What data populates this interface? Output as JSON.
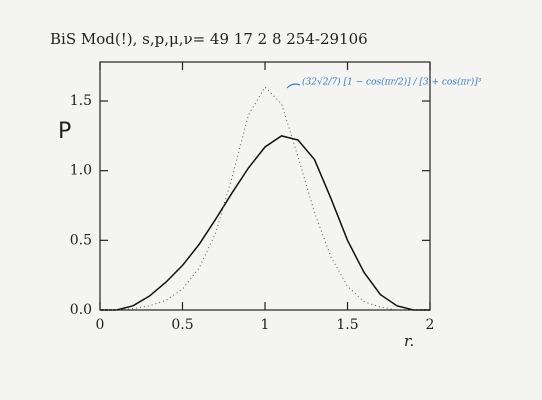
{
  "chart_data": {
    "type": "line",
    "title": "BiS Mod(!), s,p,μ,ν= 49 17 2 8 254-29106",
    "y_label": "P",
    "x_label": "r.",
    "annotation": "(32√2/7) [1 − cos(πr/2)] / [3 + cos(πr)]³",
    "x": [
      0,
      0.1,
      0.2,
      0.3,
      0.4,
      0.5,
      0.6,
      0.7,
      0.8,
      0.9,
      1.0,
      1.1,
      1.2,
      1.3,
      1.4,
      1.5,
      1.6,
      1.7,
      1.8,
      1.9,
      2.0
    ],
    "series": [
      {
        "color": "#111111",
        "style": "solid",
        "values": [
          0,
          0,
          0.03,
          0.1,
          0.2,
          0.32,
          0.47,
          0.65,
          0.84,
          1.02,
          1.17,
          1.25,
          1.22,
          1.08,
          0.8,
          0.5,
          0.27,
          0.11,
          0.03,
          0,
          0
        ]
      },
      {
        "color": "#555555",
        "style": "dotted",
        "values": [
          0,
          0,
          0.01,
          0.03,
          0.07,
          0.15,
          0.3,
          0.55,
          0.95,
          1.4,
          1.6,
          1.48,
          1.1,
          0.7,
          0.38,
          0.17,
          0.06,
          0.02,
          0,
          0,
          0
        ]
      }
    ],
    "xlim": [
      0,
      2
    ],
    "ylim": [
      0,
      1.78
    ],
    "xticks": [
      0,
      0.5,
      1,
      1.5,
      2
    ],
    "yticks": [
      {
        "value": 0,
        "label": "0.0"
      },
      {
        "value": 0.5,
        "label": "0.5"
      },
      {
        "value": 1,
        "label": "1.0"
      },
      {
        "value": 1.5,
        "label": "1.5"
      }
    ]
  }
}
